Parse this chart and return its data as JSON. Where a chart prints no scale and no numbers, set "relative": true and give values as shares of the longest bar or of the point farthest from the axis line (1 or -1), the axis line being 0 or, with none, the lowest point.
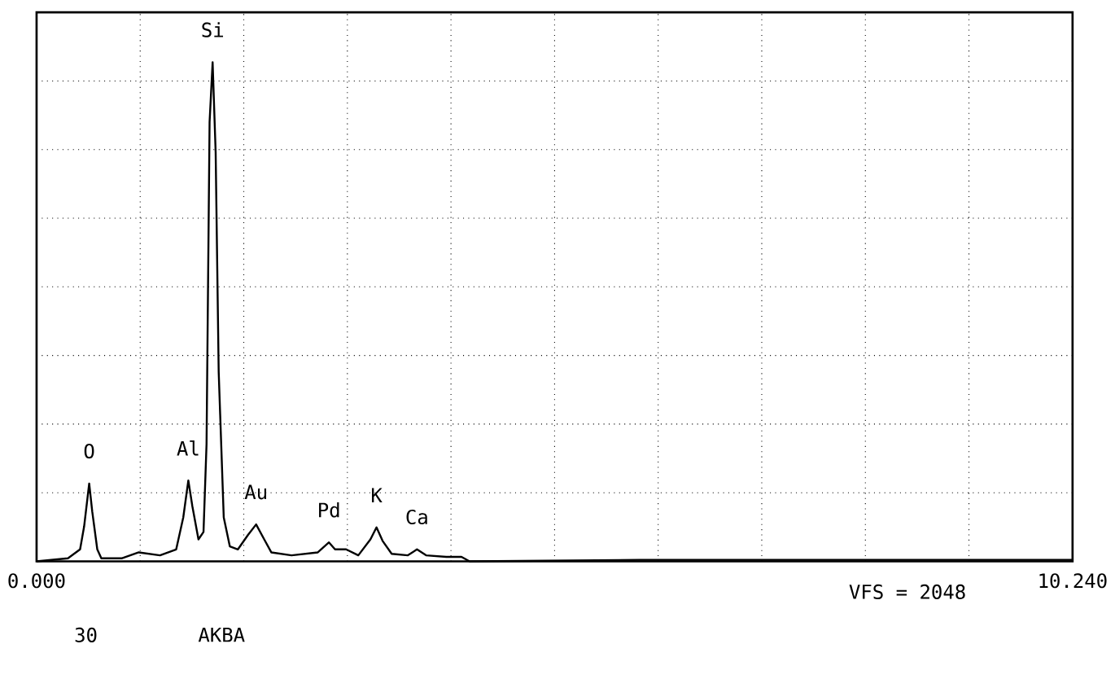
{
  "chart_data": {
    "type": "line",
    "relative": true,
    "color": "#000000",
    "marker": "none",
    "line_style": "solid",
    "grid": true,
    "x": [
      0,
      0.31,
      0.43,
      0.47,
      0.52,
      0.55,
      0.6,
      0.64,
      0.84,
      1.01,
      1.22,
      1.38,
      1.45,
      1.5,
      1.54,
      1.6,
      1.65,
      1.68,
      1.71,
      1.74,
      1.77,
      1.8,
      1.85,
      1.91,
      1.99,
      2.09,
      2.17,
      2.25,
      2.32,
      2.52,
      2.78,
      2.89,
      2.95,
      3.06,
      3.18,
      3.3,
      3.36,
      3.42,
      3.51,
      3.67,
      3.76,
      3.85,
      4.05,
      4.2,
      4.28,
      5.96,
      7.49,
      9.01,
      10.24
    ],
    "values": [
      0,
      0.006,
      0.024,
      0.07,
      0.156,
      0.1,
      0.024,
      0.006,
      0.006,
      0.018,
      0.012,
      0.024,
      0.088,
      0.162,
      0.11,
      0.044,
      0.059,
      0.235,
      0.88,
      1.0,
      0.82,
      0.38,
      0.088,
      0.03,
      0.024,
      0.053,
      0.074,
      0.044,
      0.018,
      0.012,
      0.018,
      0.038,
      0.024,
      0.024,
      0.012,
      0.044,
      0.068,
      0.041,
      0.015,
      0.012,
      0.024,
      0.012,
      0.009,
      0.009,
      0,
      0.003,
      0.003,
      0.003,
      0.003
    ],
    "xlim": [
      0,
      10.24
    ],
    "xticks": [
      {
        "value": 0,
        "label": "0.000"
      },
      {
        "value": 1.024,
        "label": null
      },
      {
        "value": 2.048,
        "label": null
      },
      {
        "value": 3.072,
        "label": null
      },
      {
        "value": 4.096,
        "label": null
      },
      {
        "value": 5.12,
        "label": null
      },
      {
        "value": 6.144,
        "label": null
      },
      {
        "value": 7.168,
        "label": null
      },
      {
        "value": 8.192,
        "label": null
      },
      {
        "value": 9.216,
        "label": null
      },
      {
        "value": 10.24,
        "label": "10.240"
      }
    ],
    "annotations": [
      {
        "text": "O",
        "x": 0.52,
        "y": 0.156
      },
      {
        "text": "Al",
        "x": 1.5,
        "y": 0.162
      },
      {
        "text": "Si",
        "x": 1.74,
        "y": 1.0
      },
      {
        "text": "Au",
        "x": 2.17,
        "y": 0.074
      },
      {
        "text": "Pd",
        "x": 2.89,
        "y": 0.038
      },
      {
        "text": "K",
        "x": 3.36,
        "y": 0.068
      },
      {
        "text": "Ca",
        "x": 3.76,
        "y": 0.024
      },
      "VFS = 2048",
      "30",
      "AKBA"
    ]
  }
}
